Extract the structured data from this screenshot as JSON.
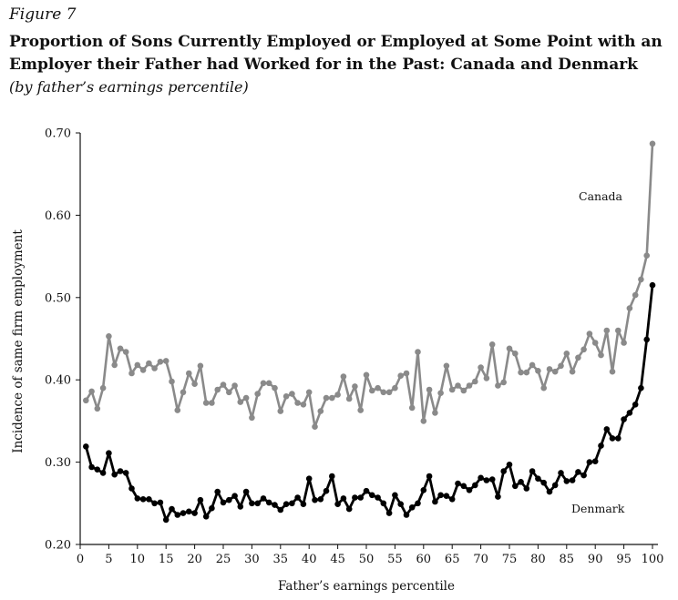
{
  "figure_label": "Figure 7",
  "title": "Proportion of Sons Currently Employed or Employed at Some Point with an Employer their Father had Worked for in the Past: Canada and Denmark",
  "subtitle": "(by father’s earnings percentile)",
  "chart_data": {
    "type": "line",
    "xlabel": "Father’s earnings percentile",
    "ylabel": "Incidence of same firm employment",
    "xlim": [
      0,
      100
    ],
    "ylim": [
      0.2,
      0.7
    ],
    "x_ticks": [
      0,
      5,
      10,
      15,
      20,
      25,
      30,
      35,
      40,
      45,
      50,
      55,
      60,
      65,
      70,
      75,
      80,
      85,
      90,
      95,
      100
    ],
    "y_ticks": [
      0.2,
      0.3,
      0.4,
      0.5,
      0.6,
      0.7
    ],
    "y_tick_labels": [
      "0.20",
      "0.30",
      "0.40",
      "0.50",
      "0.60",
      "0.70"
    ],
    "grid": false,
    "series": [
      {
        "name": "Canada",
        "color": "#8a8a8a",
        "x": [
          1,
          2,
          3,
          4,
          5,
          6,
          7,
          8,
          9,
          10,
          11,
          12,
          13,
          14,
          15,
          16,
          17,
          18,
          19,
          20,
          21,
          22,
          23,
          24,
          25,
          26,
          27,
          28,
          29,
          30,
          31,
          32,
          33,
          34,
          35,
          36,
          37,
          38,
          39,
          40,
          41,
          42,
          43,
          44,
          45,
          46,
          47,
          48,
          49,
          50,
          51,
          52,
          53,
          54,
          55,
          56,
          57,
          58,
          59,
          60,
          61,
          62,
          63,
          64,
          65,
          66,
          67,
          68,
          69,
          70,
          71,
          72,
          73,
          74,
          75,
          76,
          77,
          78,
          79,
          80,
          81,
          82,
          83,
          84,
          85,
          86,
          87,
          88,
          89,
          90,
          91,
          92,
          93,
          94,
          95,
          96,
          97,
          98,
          99,
          100
        ],
        "values": [
          0.375,
          0.386,
          0.365,
          0.39,
          0.453,
          0.418,
          0.438,
          0.434,
          0.408,
          0.418,
          0.412,
          0.42,
          0.414,
          0.422,
          0.423,
          0.398,
          0.363,
          0.385,
          0.408,
          0.395,
          0.417,
          0.372,
          0.372,
          0.388,
          0.394,
          0.385,
          0.393,
          0.373,
          0.378,
          0.354,
          0.383,
          0.396,
          0.396,
          0.39,
          0.362,
          0.38,
          0.383,
          0.372,
          0.37,
          0.385,
          0.343,
          0.362,
          0.378,
          0.378,
          0.382,
          0.404,
          0.377,
          0.392,
          0.363,
          0.406,
          0.387,
          0.39,
          0.385,
          0.385,
          0.39,
          0.405,
          0.408,
          0.366,
          0.434,
          0.35,
          0.388,
          0.36,
          0.384,
          0.417,
          0.388,
          0.393,
          0.387,
          0.393,
          0.398,
          0.415,
          0.402,
          0.443,
          0.393,
          0.397,
          0.438,
          0.432,
          0.409,
          0.409,
          0.418,
          0.411,
          0.39,
          0.413,
          0.41,
          0.417,
          0.432,
          0.41,
          0.427,
          0.437,
          0.456,
          0.445,
          0.43,
          0.46,
          0.41,
          0.46,
          0.445,
          0.487,
          0.503,
          0.522,
          0.551,
          0.687
        ]
      },
      {
        "name": "Denmark",
        "color": "#000000",
        "x": [
          1,
          2,
          3,
          4,
          5,
          6,
          7,
          8,
          9,
          10,
          11,
          12,
          13,
          14,
          15,
          16,
          17,
          18,
          19,
          20,
          21,
          22,
          23,
          24,
          25,
          26,
          27,
          28,
          29,
          30,
          31,
          32,
          33,
          34,
          35,
          36,
          37,
          38,
          39,
          40,
          41,
          42,
          43,
          44,
          45,
          46,
          47,
          48,
          49,
          50,
          51,
          52,
          53,
          54,
          55,
          56,
          57,
          58,
          59,
          60,
          61,
          62,
          63,
          64,
          65,
          66,
          67,
          68,
          69,
          70,
          71,
          72,
          73,
          74,
          75,
          76,
          77,
          78,
          79,
          80,
          81,
          82,
          83,
          84,
          85,
          86,
          87,
          88,
          89,
          90,
          91,
          92,
          93,
          94,
          95,
          96,
          97,
          98,
          99,
          100
        ],
        "values": [
          0.319,
          0.294,
          0.291,
          0.287,
          0.311,
          0.285,
          0.289,
          0.287,
          0.268,
          0.256,
          0.255,
          0.255,
          0.25,
          0.251,
          0.23,
          0.243,
          0.236,
          0.238,
          0.24,
          0.238,
          0.254,
          0.234,
          0.244,
          0.264,
          0.251,
          0.254,
          0.259,
          0.246,
          0.264,
          0.25,
          0.25,
          0.256,
          0.251,
          0.248,
          0.242,
          0.249,
          0.25,
          0.257,
          0.249,
          0.28,
          0.254,
          0.255,
          0.265,
          0.283,
          0.249,
          0.256,
          0.243,
          0.257,
          0.257,
          0.265,
          0.26,
          0.257,
          0.25,
          0.238,
          0.26,
          0.249,
          0.236,
          0.245,
          0.25,
          0.266,
          0.283,
          0.252,
          0.26,
          0.259,
          0.255,
          0.274,
          0.271,
          0.266,
          0.272,
          0.281,
          0.278,
          0.279,
          0.258,
          0.289,
          0.297,
          0.271,
          0.276,
          0.268,
          0.289,
          0.28,
          0.275,
          0.264,
          0.272,
          0.287,
          0.277,
          0.278,
          0.288,
          0.284,
          0.3,
          0.301,
          0.32,
          0.34,
          0.329,
          0.329,
          0.352,
          0.36,
          0.37,
          0.39,
          0.449,
          0.515
        ]
      }
    ]
  }
}
